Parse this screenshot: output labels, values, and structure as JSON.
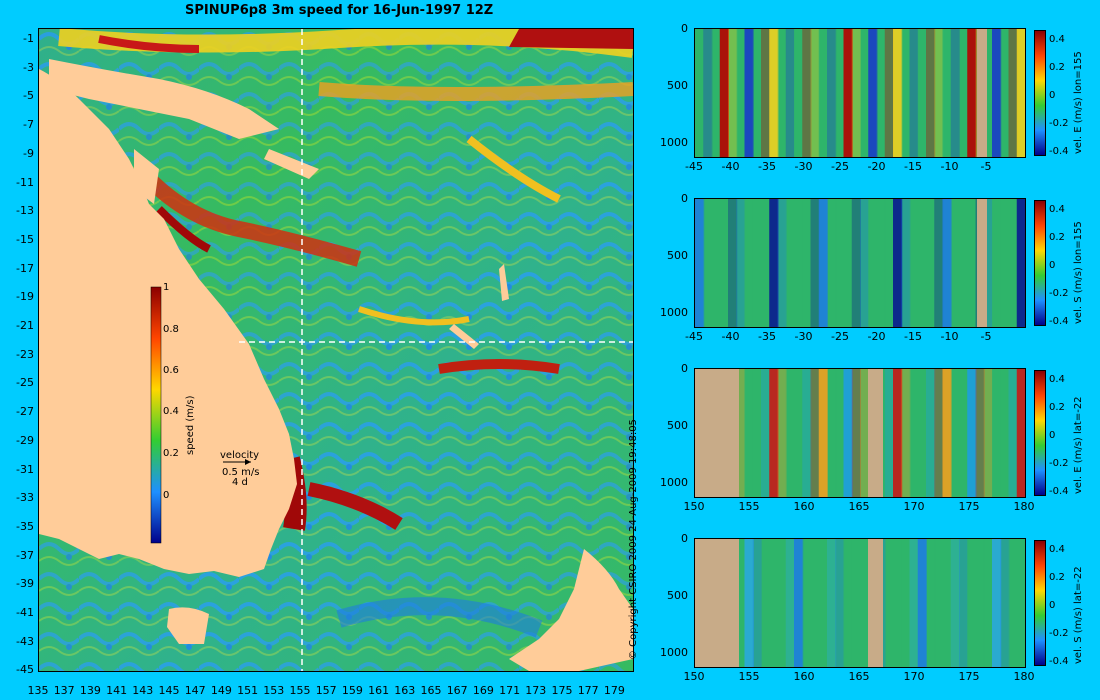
{
  "title": "SPINUP6p8 3m speed for 16-Jun-1997 12Z",
  "copyright": "© Copyright CSIRO 2009   24-Aug-2009 19:48:05",
  "map": {
    "y_ticks": [
      "-1",
      "-3",
      "-5",
      "-7",
      "-9",
      "-11",
      "-13",
      "-15",
      "-17",
      "-19",
      "-21",
      "-23",
      "-25",
      "-27",
      "-29",
      "-31",
      "-33",
      "-35",
      "-37",
      "-39",
      "-41",
      "-43",
      "-45"
    ],
    "x_ticks": [
      "135",
      "137",
      "139",
      "141",
      "143",
      "145",
      "147",
      "149",
      "151",
      "153",
      "155",
      "157",
      "159",
      "161",
      "163",
      "165",
      "167",
      "169",
      "171",
      "173",
      "175",
      "177",
      "179"
    ],
    "colorbar_label": "speed (m/s)",
    "colorbar_ticks": [
      "1",
      "0.8",
      "0.6",
      "0.4",
      "0.2",
      "0"
    ],
    "velocity_key": {
      "title": "velocity",
      "speed": "0.5 m/s",
      "duration": "4 d"
    },
    "land_color": "#ffcc99",
    "section_lon": 155,
    "section_lat": -22
  },
  "panels": [
    {
      "label": "vel. E (m/s) lon=155",
      "x_ticks": [
        "-45",
        "-40",
        "-35",
        "-30",
        "-25",
        "-20",
        "-15",
        "-10",
        "-5"
      ],
      "y_ticks": [
        "0",
        "500",
        "1000"
      ],
      "cb_ticks": [
        "0.4",
        "0.2",
        "0",
        "-0.2",
        "-0.4"
      ]
    },
    {
      "label": "vel. S (m/s) lon=155",
      "x_ticks": [
        "-45",
        "-40",
        "-35",
        "-30",
        "-25",
        "-20",
        "-15",
        "-10",
        "-5"
      ],
      "y_ticks": [
        "0",
        "500",
        "1000"
      ],
      "cb_ticks": [
        "0.4",
        "0.2",
        "0",
        "-0.2",
        "-0.4"
      ]
    },
    {
      "label": "vel. E (m/s) lat=-22",
      "x_ticks": [
        "150",
        "155",
        "160",
        "165",
        "170",
        "175",
        "180"
      ],
      "y_ticks": [
        "0",
        "500",
        "1000"
      ],
      "cb_ticks": [
        "0.4",
        "0.2",
        "0",
        "-0.2",
        "-0.4"
      ]
    },
    {
      "label": "vel. S (m/s) lat=-22",
      "x_ticks": [
        "150",
        "155",
        "160",
        "165",
        "170",
        "175",
        "180"
      ],
      "y_ticks": [
        "0",
        "500",
        "1000"
      ],
      "cb_ticks": [
        "0.4",
        "0.2",
        "0",
        "-0.2",
        "-0.4"
      ]
    }
  ]
}
